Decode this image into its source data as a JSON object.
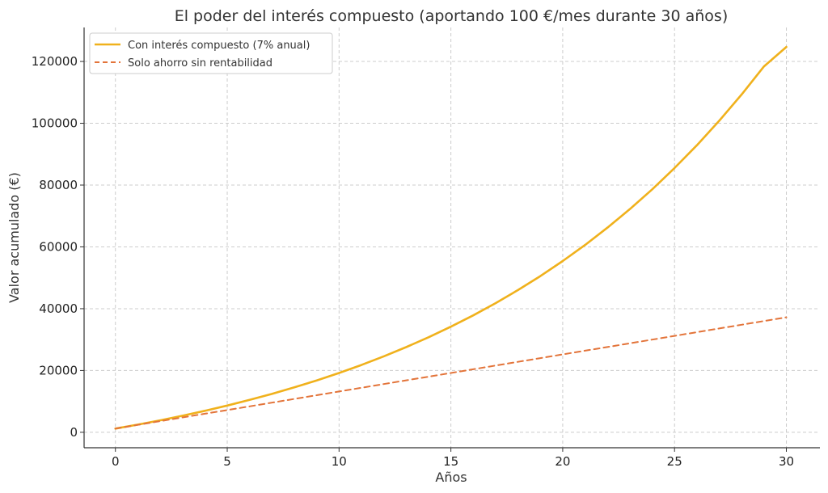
{
  "chart_data": {
    "type": "line",
    "title": "El poder del interés compuesto (aportando 100 €/mes durante 30 años)",
    "xlabel": "Años",
    "ylabel": "Valor acumulado (€)",
    "xlim": [
      -1.4,
      31.5
    ],
    "ylim": [
      -5000,
      131000
    ],
    "xticks": [
      0,
      5,
      10,
      15,
      20,
      25,
      30
    ],
    "yticks": [
      0,
      20000,
      40000,
      60000,
      80000,
      100000,
      120000
    ],
    "x_tick_labels": [
      "0",
      "5",
      "10",
      "15",
      "20",
      "25",
      "30"
    ],
    "y_tick_labels": [
      "0",
      "20000",
      "40000",
      "60000",
      "80000",
      "100000",
      "120000"
    ],
    "grid": true,
    "legend_position": "top-left",
    "x": [
      0,
      1,
      2,
      3,
      4,
      5,
      6,
      7,
      8,
      9,
      10,
      11,
      12,
      13,
      14,
      15,
      16,
      17,
      18,
      19,
      20,
      21,
      22,
      23,
      24,
      25,
      26,
      27,
      28,
      29,
      30
    ],
    "series": [
      {
        "name": "Con interés compuesto (7% anual)",
        "color": "#f0b11c",
        "style": "solid",
        "values": [
          1200,
          2488,
          3870,
          5352,
          6940,
          8644,
          10471,
          12431,
          14532,
          16786,
          19202,
          21794,
          24573,
          27553,
          30749,
          34175,
          37850,
          41790,
          46016,
          50548,
          55407,
          60618,
          66206,
          72198,
          78624,
          85514,
          92903,
          100826,
          109322,
          118432,
          124700
        ]
      },
      {
        "name": "Solo ahorro sin rentabilidad",
        "color": "#e3743a",
        "style": "dashed",
        "values": [
          1200,
          2400,
          3600,
          4800,
          6000,
          7200,
          8400,
          9600,
          10800,
          12000,
          13200,
          14400,
          15600,
          16800,
          18000,
          19200,
          20400,
          21600,
          22800,
          24000,
          25200,
          26400,
          27600,
          28800,
          30000,
          31200,
          32400,
          33600,
          34800,
          36000,
          37200
        ]
      }
    ]
  }
}
